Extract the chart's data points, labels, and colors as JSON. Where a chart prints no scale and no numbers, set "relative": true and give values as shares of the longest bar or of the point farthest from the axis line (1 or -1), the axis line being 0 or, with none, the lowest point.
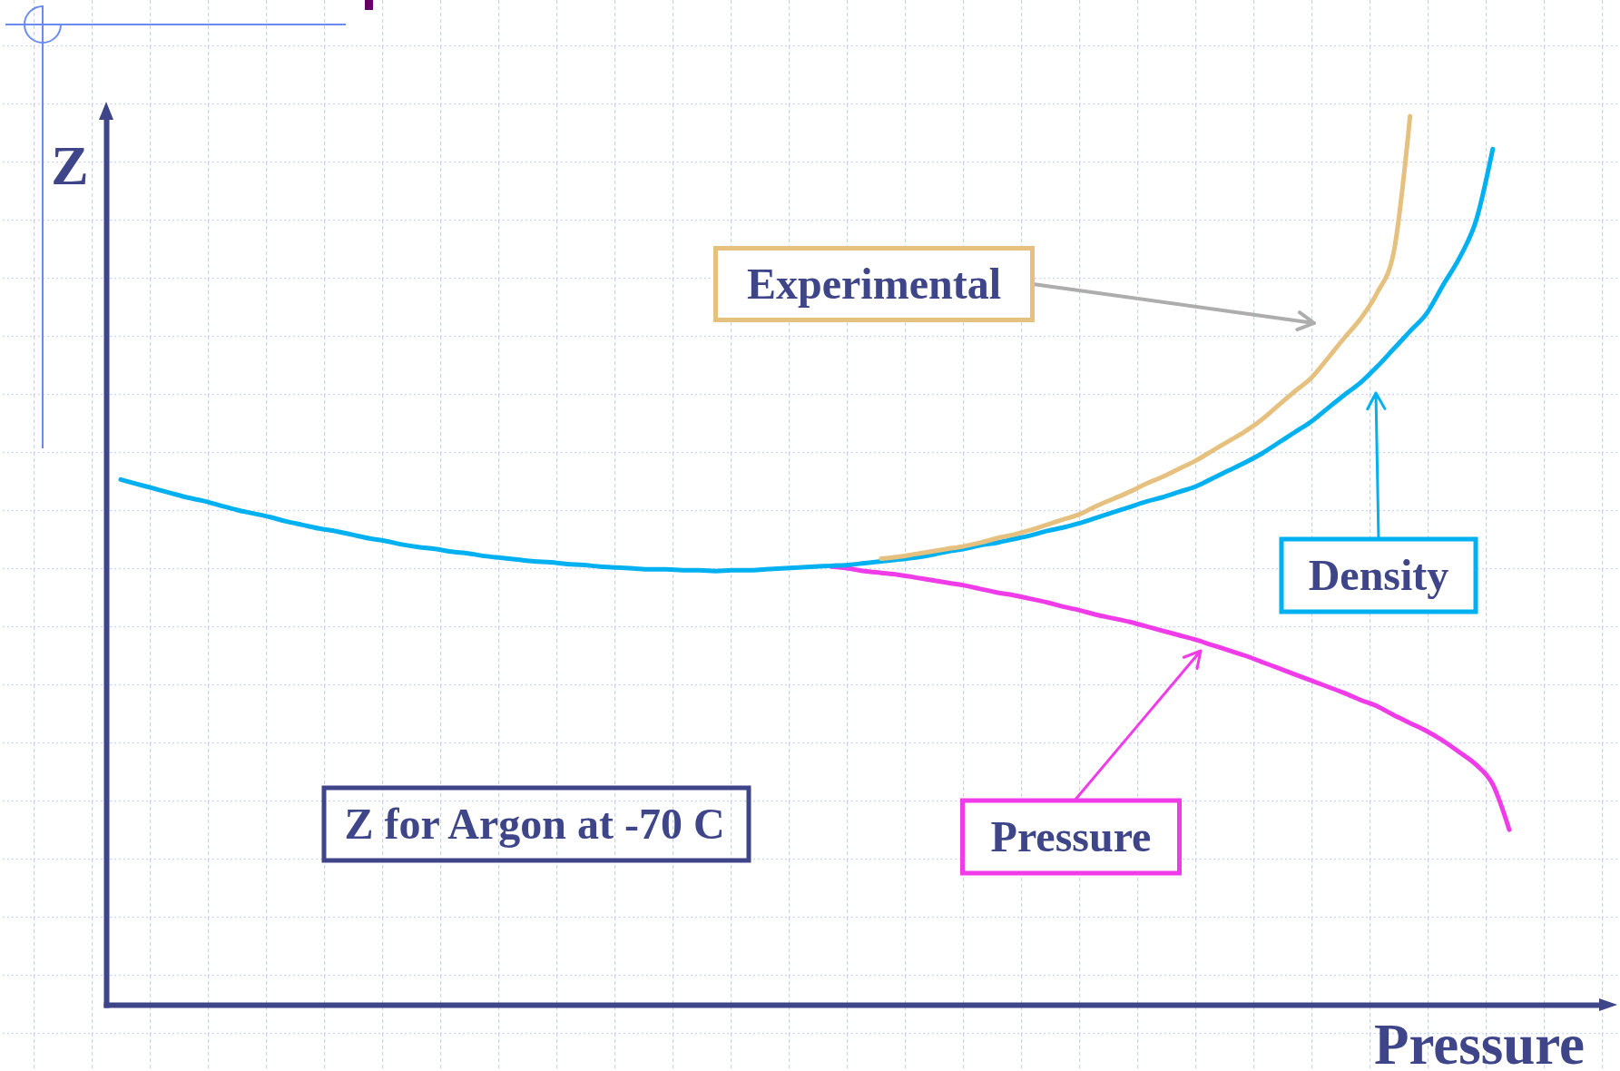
{
  "chart_data": {
    "type": "line",
    "relative": true,
    "title": "Z for Argon at -70 C",
    "xlabel": "Pressure",
    "ylabel": "Z",
    "categories": [
      null,
      null,
      null,
      null,
      null,
      null,
      null,
      null,
      null,
      null,
      null,
      null,
      null,
      null,
      null,
      null,
      null,
      null,
      null,
      null,
      null,
      null,
      null,
      null,
      null,
      null,
      null,
      null,
      null,
      null,
      null,
      null,
      null,
      null,
      null,
      null,
      null,
      null,
      null,
      null,
      null,
      null,
      null,
      null,
      null,
      null,
      null,
      null,
      null,
      null,
      null,
      null,
      null,
      null,
      null,
      null,
      null,
      null,
      null,
      null,
      null,
      null,
      null,
      null,
      null,
      null,
      null,
      null,
      null,
      null,
      null,
      null,
      null,
      null,
      null,
      null,
      null,
      null,
      null,
      null,
      null,
      null,
      null,
      null,
      null
    ],
    "series": [
      {
        "name": "Pressure",
        "color": "#f03ce8",
        "values": [
          null,
          null,
          null,
          null,
          null,
          null,
          null,
          null,
          null,
          null,
          null,
          null,
          null,
          null,
          null,
          null,
          null,
          null,
          null,
          null,
          null,
          null,
          null,
          null,
          null,
          null,
          null,
          null,
          null,
          null,
          null,
          null,
          null,
          null,
          null,
          null,
          null,
          null,
          null,
          null,
          null,
          null,
          null,
          0.493,
          0.491,
          0.488,
          0.486,
          0.484,
          0.481,
          0.478,
          0.475,
          0.472,
          0.468,
          0.464,
          0.461,
          0.457,
          0.453,
          0.448,
          0.444,
          0.439,
          0.435,
          0.431,
          0.426,
          0.421,
          0.416,
          0.411,
          0.405,
          0.399,
          0.393,
          0.386,
          0.379,
          0.372,
          0.365,
          0.358,
          0.351,
          0.343,
          0.336,
          0.326,
          0.317,
          0.308,
          0.297,
          0.284,
          0.27,
          0.248,
          0.197
        ]
      },
      {
        "name": "Density",
        "color": "#00b0f0",
        "values": [
          0.591,
          0.586,
          0.581,
          0.576,
          0.571,
          0.567,
          0.562,
          0.557,
          0.553,
          0.549,
          0.544,
          0.54,
          0.536,
          0.533,
          0.529,
          0.525,
          0.522,
          0.518,
          0.515,
          0.513,
          0.51,
          0.508,
          0.505,
          0.503,
          0.501,
          0.499,
          0.498,
          0.496,
          0.495,
          0.493,
          0.492,
          0.491,
          0.49,
          0.49,
          0.489,
          0.489,
          0.488,
          0.489,
          0.489,
          0.49,
          0.491,
          0.492,
          0.493,
          0.494,
          0.495,
          0.497,
          0.499,
          0.501,
          0.503,
          0.506,
          0.51,
          0.513,
          0.517,
          0.52,
          0.524,
          0.528,
          0.533,
          0.537,
          0.542,
          0.548,
          0.554,
          0.56,
          0.566,
          0.571,
          0.577,
          0.583,
          0.592,
          0.601,
          0.61,
          0.62,
          0.632,
          0.644,
          0.656,
          0.671,
          0.686,
          0.7,
          0.718,
          0.738,
          0.758,
          0.778,
          0.81,
          0.841,
          0.883,
          0.963,
          null
        ]
      },
      {
        "name": "Experimental",
        "color": "#e5c07e",
        "values": [
          null,
          null,
          null,
          null,
          null,
          null,
          null,
          null,
          null,
          null,
          null,
          null,
          null,
          null,
          null,
          null,
          null,
          null,
          null,
          null,
          null,
          null,
          null,
          null,
          null,
          null,
          null,
          null,
          null,
          null,
          null,
          null,
          null,
          null,
          null,
          null,
          null,
          null,
          null,
          null,
          null,
          null,
          null,
          null,
          null,
          null,
          0.502,
          0.504,
          0.507,
          0.51,
          0.513,
          0.516,
          0.52,
          0.525,
          0.529,
          0.534,
          0.54,
          0.546,
          0.552,
          0.561,
          0.569,
          0.577,
          0.586,
          0.594,
          0.603,
          0.612,
          0.623,
          0.634,
          0.645,
          0.658,
          0.674,
          0.69,
          0.705,
          0.727,
          0.75,
          0.772,
          0.801,
          0.846,
          1,
          null,
          null,
          null,
          null,
          null,
          null
        ]
      }
    ]
  }
}
